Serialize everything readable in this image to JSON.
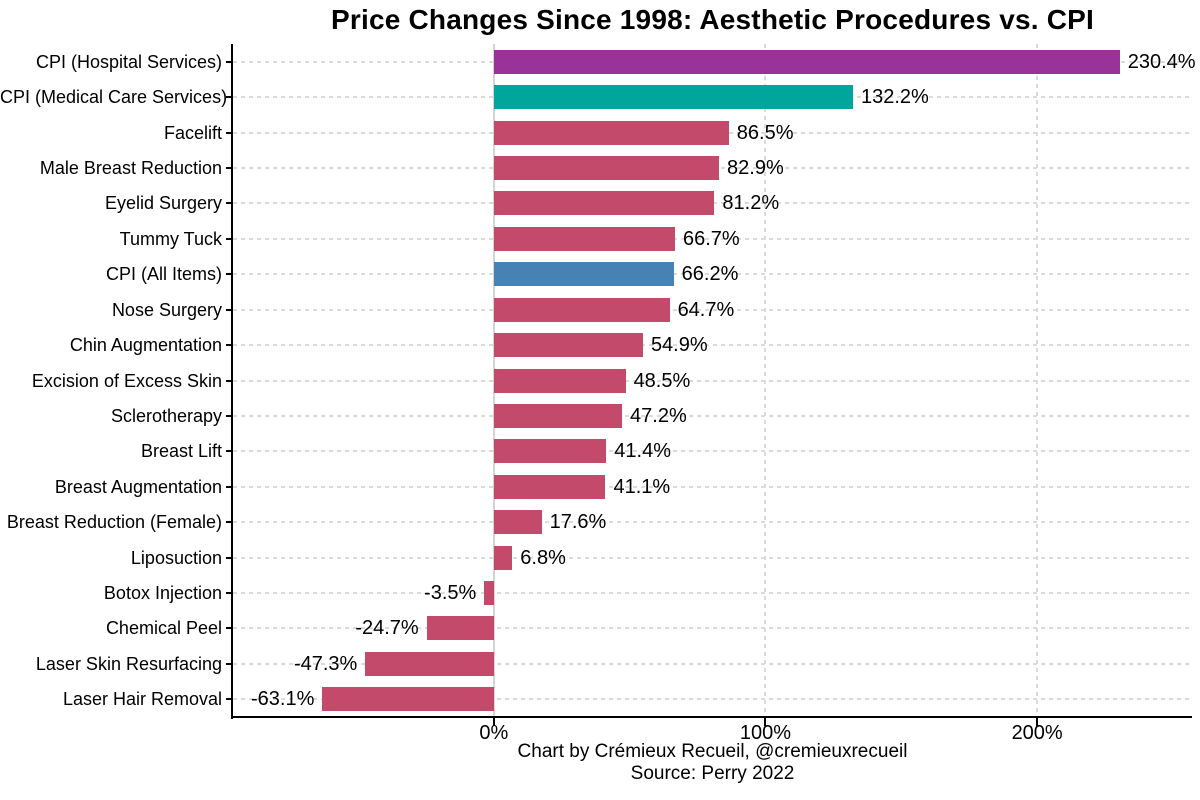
{
  "chart_data": {
    "type": "bar",
    "orientation": "horizontal",
    "title": "Price Changes Since 1998: Aesthetic Procedures vs. CPI",
    "categories": [
      "CPI (Hospital Services)",
      "CPI (Medical Care Services)",
      "Facelift",
      "Male Breast Reduction",
      "Eyelid Surgery",
      "Tummy Tuck",
      "CPI (All Items)",
      "Nose Surgery",
      "Chin Augmentation",
      "Excision of Excess Skin",
      "Sclerotherapy",
      "Breast Lift",
      "Breast Augmentation",
      "Breast Reduction (Female)",
      "Liposuction",
      "Botox Injection",
      "Chemical Peel",
      "Laser Skin Resurfacing",
      "Laser Hair Removal"
    ],
    "values": [
      230.4,
      132.2,
      86.5,
      82.9,
      81.2,
      66.7,
      66.2,
      64.7,
      54.9,
      48.5,
      47.2,
      41.4,
      41.1,
      17.6,
      6.8,
      -3.5,
      -24.7,
      -47.3,
      -63.1
    ],
    "value_labels": [
      "230.4%",
      "132.2%",
      "86.5%",
      "82.9%",
      "81.2%",
      "66.7%",
      "66.2%",
      "64.7%",
      "54.9%",
      "48.5%",
      "47.2%",
      "41.4%",
      "41.1%",
      "17.6%",
      "6.8%",
      "-3.5%",
      "-24.7%",
      "-47.3%",
      "-63.1%"
    ],
    "bar_colors": [
      "#993299",
      "#00A69B",
      "#C44A6B",
      "#C44A6B",
      "#C44A6B",
      "#C44A6B",
      "#4682B4",
      "#C44A6B",
      "#C44A6B",
      "#C44A6B",
      "#C44A6B",
      "#C44A6B",
      "#C44A6B",
      "#C44A6B",
      "#C44A6B",
      "#C44A6B",
      "#C44A6B",
      "#C44A6B",
      "#C44A6B"
    ],
    "xlim": [
      -96,
      257
    ],
    "xticks": [
      {
        "value": 0,
        "label": "0%"
      },
      {
        "value": 100,
        "label": "100%"
      },
      {
        "value": 200,
        "label": "200%"
      }
    ],
    "grid": {
      "horizontal": "dashed per category",
      "vertical": "dashed at ticks",
      "zero_line": "solid"
    },
    "colors": {
      "grid": "#dbdbdb",
      "zero_line": "#d4d4d4",
      "axis": "#000000",
      "text": "#000000"
    },
    "caption_line1": "Chart by Crémieux Recueil, @cremieuxrecueil",
    "caption_line2": "Source: Perry 2022"
  }
}
